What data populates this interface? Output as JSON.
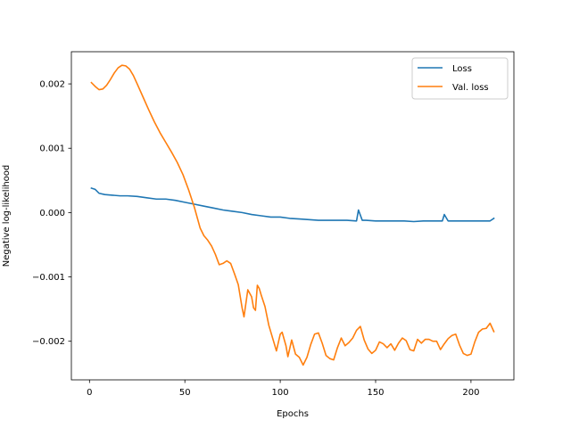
{
  "chart_data": {
    "type": "line",
    "title": "",
    "xlabel": "Epochs",
    "ylabel": "Negative log-likelihood",
    "xlim": [
      -9.5,
      222.5
    ],
    "ylim": [
      -0.0026,
      0.0025
    ],
    "xticks": [
      0,
      50,
      100,
      150,
      200
    ],
    "xtick_labels": [
      "0",
      "50",
      "100",
      "150",
      "200"
    ],
    "yticks": [
      -0.002,
      -0.001,
      0.0,
      0.001,
      0.002
    ],
    "ytick_labels": [
      "−0.002",
      "−0.001",
      "0.000",
      "0.001",
      "0.002"
    ],
    "grid": false,
    "legend_position": "top-right",
    "series": [
      {
        "name": "Loss",
        "color": "#1f77b4",
        "x": [
          1,
          3,
          5,
          8,
          12,
          16,
          20,
          25,
          30,
          35,
          40,
          45,
          50,
          55,
          60,
          65,
          70,
          75,
          80,
          85,
          90,
          95,
          100,
          105,
          110,
          115,
          120,
          125,
          130,
          135,
          140,
          141,
          143,
          145,
          150,
          155,
          160,
          165,
          170,
          175,
          180,
          185,
          186,
          188,
          190,
          195,
          200,
          205,
          210,
          212
        ],
        "y": [
          0.00038,
          0.00036,
          0.0003,
          0.00028,
          0.00027,
          0.00026,
          0.00026,
          0.00025,
          0.00023,
          0.00021,
          0.00021,
          0.00019,
          0.00016,
          0.00013,
          0.0001,
          7e-05,
          4e-05,
          2e-05,
          0.0,
          -3e-05,
          -5e-05,
          -7e-05,
          -7e-05,
          -9e-05,
          -0.0001,
          -0.00011,
          -0.00012,
          -0.00012,
          -0.00012,
          -0.00012,
          -0.00013,
          4e-05,
          -0.00012,
          -0.00012,
          -0.00013,
          -0.00013,
          -0.00013,
          -0.00013,
          -0.00014,
          -0.00013,
          -0.00013,
          -0.00013,
          -3e-05,
          -0.00013,
          -0.00013,
          -0.00013,
          -0.00013,
          -0.00013,
          -0.00013,
          -9e-05
        ]
      },
      {
        "name": "Val. loss",
        "color": "#ff7f0e",
        "x": [
          1,
          3,
          5,
          7,
          9,
          11,
          13,
          15,
          17,
          19,
          21,
          23,
          25,
          28,
          31,
          34,
          37,
          40,
          43,
          46,
          49,
          52,
          55,
          58,
          60,
          62,
          64,
          66,
          68,
          70,
          72,
          74,
          76,
          78,
          80,
          81,
          83,
          85,
          86,
          87,
          88,
          89,
          90,
          92,
          94,
          96,
          98,
          100,
          101,
          103,
          104,
          106,
          108,
          110,
          112,
          114,
          116,
          118,
          120,
          122,
          124,
          126,
          128,
          130,
          132,
          134,
          136,
          138,
          140,
          142,
          144,
          146,
          148,
          150,
          152,
          154,
          156,
          158,
          160,
          162,
          164,
          166,
          168,
          170,
          172,
          174,
          176,
          178,
          180,
          182,
          184,
          186,
          188,
          190,
          192,
          194,
          196,
          198,
          200,
          202,
          204,
          206,
          208,
          210,
          212
        ],
        "y": [
          0.00202,
          0.00196,
          0.00191,
          0.00192,
          0.00198,
          0.00207,
          0.00217,
          0.00225,
          0.00229,
          0.00228,
          0.00223,
          0.00213,
          0.002,
          0.0018,
          0.0016,
          0.00141,
          0.00124,
          0.00109,
          0.00094,
          0.00078,
          0.00059,
          0.00035,
          8e-05,
          -0.00024,
          -0.00036,
          -0.00043,
          -0.00052,
          -0.00065,
          -0.00081,
          -0.00079,
          -0.00075,
          -0.00079,
          -0.00095,
          -0.00112,
          -0.00148,
          -0.00162,
          -0.0012,
          -0.00131,
          -0.00148,
          -0.00152,
          -0.00113,
          -0.00118,
          -0.00128,
          -0.00146,
          -0.00175,
          -0.00195,
          -0.00215,
          -0.00189,
          -0.00186,
          -0.00207,
          -0.00224,
          -0.00198,
          -0.0022,
          -0.00225,
          -0.00237,
          -0.00225,
          -0.00205,
          -0.00189,
          -0.00187,
          -0.00203,
          -0.00222,
          -0.00227,
          -0.00229,
          -0.0021,
          -0.00195,
          -0.00207,
          -0.00202,
          -0.00195,
          -0.00183,
          -0.00177,
          -0.00198,
          -0.00212,
          -0.00219,
          -0.00214,
          -0.00201,
          -0.00204,
          -0.0021,
          -0.00204,
          -0.00214,
          -0.00203,
          -0.00195,
          -0.00199,
          -0.00213,
          -0.00215,
          -0.00197,
          -0.00203,
          -0.00197,
          -0.00197,
          -0.002,
          -0.002,
          -0.00213,
          -0.00204,
          -0.00196,
          -0.00191,
          -0.00189,
          -0.00206,
          -0.00219,
          -0.00222,
          -0.0022,
          -0.00201,
          -0.00186,
          -0.00181,
          -0.0018,
          -0.00172,
          -0.00185
        ]
      }
    ]
  }
}
